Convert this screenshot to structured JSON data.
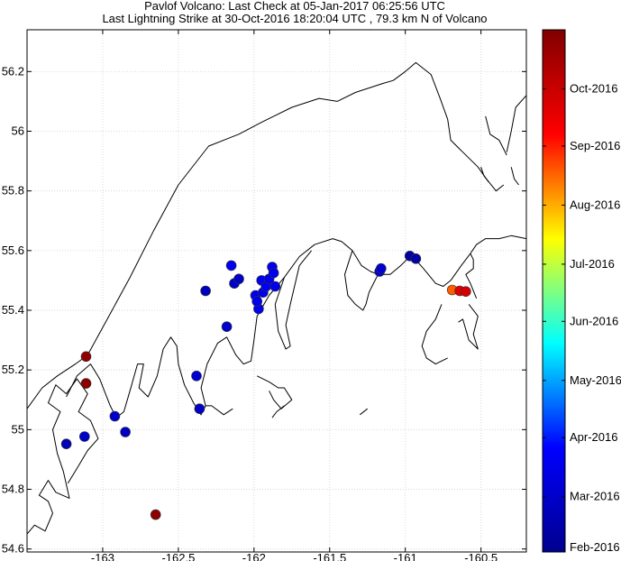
{
  "chart_data": {
    "type": "scatter",
    "title_lines": [
      "Pavlof Volcano: Last Check at 05-Jan-2017 06:25:56 UTC",
      "Last Lightning Strike at 30-Oct-2016 18:20:04 UTC , 79.3 km N of Volcano"
    ],
    "xlim": [
      -163.5,
      -160.2
    ],
    "ylim": [
      54.59,
      56.34
    ],
    "x_ticks": [
      -163,
      -162.5,
      -162,
      -161.5,
      -161,
      -160.5
    ],
    "x_tick_labels": [
      "-163",
      "-162.5",
      "-162",
      "-161.5",
      "-161",
      "-160.5"
    ],
    "y_ticks": [
      54.6,
      54.8,
      55,
      55.2,
      55.4,
      55.6,
      55.8,
      56,
      56.2
    ],
    "y_tick_labels": [
      "54.6",
      "54.8",
      "55",
      "55.2",
      "55.4",
      "55.6",
      "55.8",
      "56",
      "56.2"
    ],
    "grid": true,
    "colorbar": {
      "range": [
        "2016-02-01",
        "2016-11-01"
      ],
      "ticks": [
        "2016-02-01",
        "2016-03-01",
        "2016-04-01",
        "2016-05-01",
        "2016-06-01",
        "2016-07-01",
        "2016-08-01",
        "2016-09-01",
        "2016-10-01"
      ],
      "tick_labels": [
        "Feb-2016",
        "Mar-2016",
        "Apr-2016",
        "May-2016",
        "Jun-2016",
        "Jul-2016",
        "Aug-2016",
        "Sep-2016",
        "Oct-2016"
      ],
      "colormap": [
        "#00008f",
        "#0000ff",
        "#00ffff",
        "#ffff00",
        "#ff0000",
        "#800000"
      ]
    },
    "points": [
      {
        "lon": -163.11,
        "lat": 55.245,
        "date": "2016-10-25"
      },
      {
        "lon": -163.11,
        "lat": 55.155,
        "date": "2016-10-27"
      },
      {
        "lon": -162.65,
        "lat": 54.715,
        "date": "2016-10-26"
      },
      {
        "lon": -163.24,
        "lat": 54.952,
        "date": "2016-02-20"
      },
      {
        "lon": -163.12,
        "lat": 54.977,
        "date": "2016-03-01"
      },
      {
        "lon": -162.92,
        "lat": 55.045,
        "date": "2016-03-03"
      },
      {
        "lon": -162.85,
        "lat": 54.992,
        "date": "2016-02-25"
      },
      {
        "lon": -162.38,
        "lat": 55.18,
        "date": "2016-03-05"
      },
      {
        "lon": -162.36,
        "lat": 55.07,
        "date": "2016-02-28"
      },
      {
        "lon": -162.32,
        "lat": 55.465,
        "date": "2016-02-22"
      },
      {
        "lon": -162.18,
        "lat": 55.345,
        "date": "2016-03-02"
      },
      {
        "lon": -162.15,
        "lat": 55.55,
        "date": "2016-03-20"
      },
      {
        "lon": -162.13,
        "lat": 55.49,
        "date": "2016-03-01"
      },
      {
        "lon": -162.1,
        "lat": 55.505,
        "date": "2016-02-28"
      },
      {
        "lon": -161.99,
        "lat": 55.45,
        "date": "2016-03-16"
      },
      {
        "lon": -161.97,
        "lat": 55.405,
        "date": "2016-03-18"
      },
      {
        "lon": -161.98,
        "lat": 55.43,
        "date": "2016-03-17"
      },
      {
        "lon": -161.95,
        "lat": 55.5,
        "date": "2016-03-18"
      },
      {
        "lon": -161.94,
        "lat": 55.46,
        "date": "2016-03-19"
      },
      {
        "lon": -161.92,
        "lat": 55.48,
        "date": "2016-03-20"
      },
      {
        "lon": -161.9,
        "lat": 55.505,
        "date": "2016-03-19"
      },
      {
        "lon": -161.88,
        "lat": 55.545,
        "date": "2016-03-21"
      },
      {
        "lon": -161.87,
        "lat": 55.525,
        "date": "2016-03-19"
      },
      {
        "lon": -161.86,
        "lat": 55.48,
        "date": "2016-03-18"
      },
      {
        "lon": -161.17,
        "lat": 55.53,
        "date": "2016-03-03"
      },
      {
        "lon": -161.16,
        "lat": 55.54,
        "date": "2016-03-05"
      },
      {
        "lon": -160.97,
        "lat": 55.582,
        "date": "2016-02-10"
      },
      {
        "lon": -160.93,
        "lat": 55.573,
        "date": "2016-02-12"
      },
      {
        "lon": -160.69,
        "lat": 55.468,
        "date": "2016-08-18"
      },
      {
        "lon": -160.64,
        "lat": 55.465,
        "date": "2016-09-20"
      },
      {
        "lon": -160.6,
        "lat": 55.463,
        "date": "2016-09-25"
      }
    ],
    "coastlines": [
      [
        [
          -163.5,
          54.65
        ],
        [
          -163.45,
          54.68
        ],
        [
          -163.38,
          54.66
        ],
        [
          -163.33,
          54.72
        ],
        [
          -163.36,
          54.76
        ],
        [
          -163.42,
          54.78
        ],
        [
          -163.36,
          54.83
        ],
        [
          -163.31,
          54.79
        ],
        [
          -163.22,
          54.77
        ],
        [
          -163.26,
          54.86
        ],
        [
          -163.3,
          54.92
        ],
        [
          -163.33,
          55.0
        ],
        [
          -163.28,
          55.06
        ],
        [
          -163.36,
          55.09
        ],
        [
          -163.31,
          55.15
        ],
        [
          -163.24,
          55.12
        ],
        [
          -163.17,
          55.17
        ],
        [
          -163.1,
          55.12
        ],
        [
          -163.16,
          55.06
        ],
        [
          -163.08,
          55.03
        ],
        [
          -163.03,
          54.97
        ],
        [
          -163.1,
          54.93
        ],
        [
          -163.17,
          54.87
        ],
        [
          -163.23,
          54.82
        ]
      ],
      [
        [
          -163.5,
          55.07
        ],
        [
          -163.4,
          55.14
        ],
        [
          -163.3,
          55.18
        ],
        [
          -163.18,
          55.22
        ],
        [
          -163.1,
          55.25
        ],
        [
          -162.97,
          55.37
        ],
        [
          -162.82,
          55.51
        ],
        [
          -162.66,
          55.67
        ],
        [
          -162.5,
          55.82
        ],
        [
          -162.3,
          55.95
        ],
        [
          -162.1,
          55.99
        ],
        [
          -161.95,
          56.03
        ],
        [
          -161.75,
          56.08
        ],
        [
          -161.57,
          56.11
        ],
        [
          -161.45,
          56.1
        ],
        [
          -161.33,
          56.13
        ],
        [
          -161.15,
          56.16
        ],
        [
          -161.08,
          56.17
        ],
        [
          -161.0,
          56.2
        ],
        [
          -160.93,
          56.23
        ],
        [
          -160.83,
          56.19
        ],
        [
          -160.77,
          56.11
        ],
        [
          -160.72,
          56.04
        ],
        [
          -160.7,
          55.97
        ],
        [
          -160.62,
          55.93
        ],
        [
          -160.52,
          55.88
        ],
        [
          -160.45,
          55.83
        ]
      ],
      [
        [
          -163.24,
          55.11
        ],
        [
          -163.17,
          55.18
        ],
        [
          -163.08,
          55.22
        ],
        [
          -163.02,
          55.17
        ],
        [
          -162.95,
          55.08
        ],
        [
          -162.91,
          55.04
        ],
        [
          -162.86,
          55.06
        ],
        [
          -162.82,
          55.13
        ],
        [
          -162.77,
          55.22
        ],
        [
          -162.73,
          55.22
        ],
        [
          -162.76,
          55.14
        ],
        [
          -162.7,
          55.11
        ],
        [
          -162.64,
          55.18
        ],
        [
          -162.6,
          55.27
        ],
        [
          -162.55,
          55.31
        ],
        [
          -162.51,
          55.28
        ],
        [
          -162.5,
          55.22
        ],
        [
          -162.46,
          55.15
        ],
        [
          -162.4,
          55.09
        ],
        [
          -162.35,
          55.05
        ],
        [
          -162.32,
          55.08
        ],
        [
          -162.35,
          55.14
        ],
        [
          -162.31,
          55.22
        ],
        [
          -162.24,
          55.29
        ],
        [
          -162.18,
          55.31
        ],
        [
          -162.12,
          55.25
        ],
        [
          -162.07,
          55.22
        ],
        [
          -162.02,
          55.23
        ],
        [
          -162.0,
          55.3
        ],
        [
          -161.98,
          55.38
        ],
        [
          -161.9,
          55.45
        ],
        [
          -161.8,
          55.51
        ],
        [
          -161.7,
          55.58
        ],
        [
          -161.6,
          55.62
        ],
        [
          -161.48,
          55.64
        ],
        [
          -161.42,
          55.63
        ],
        [
          -161.35,
          55.6
        ],
        [
          -161.29,
          55.55
        ],
        [
          -161.23,
          55.53
        ],
        [
          -161.18,
          55.52
        ],
        [
          -161.1,
          55.52
        ],
        [
          -161.03,
          55.55
        ],
        [
          -160.99,
          55.57
        ],
        [
          -160.95,
          55.58
        ],
        [
          -160.88,
          55.54
        ],
        [
          -160.8,
          55.49
        ],
        [
          -160.75,
          55.48
        ],
        [
          -160.7,
          55.5
        ],
        [
          -160.63,
          55.55
        ],
        [
          -160.57,
          55.59
        ],
        [
          -160.53,
          55.62
        ],
        [
          -160.47,
          55.64
        ],
        [
          -160.38,
          55.64
        ],
        [
          -160.3,
          55.65
        ],
        [
          -160.2,
          55.64
        ]
      ],
      [
        [
          -161.8,
          55.51
        ],
        [
          -161.86,
          55.42
        ],
        [
          -161.84,
          55.33
        ],
        [
          -161.79,
          55.27
        ],
        [
          -161.76,
          55.28
        ],
        [
          -161.79,
          55.35
        ],
        [
          -161.76,
          55.42
        ],
        [
          -161.7,
          55.55
        ],
        [
          -161.62,
          55.6
        ]
      ],
      [
        [
          -161.35,
          55.6
        ],
        [
          -161.4,
          55.52
        ],
        [
          -161.38,
          55.45
        ],
        [
          -161.33,
          55.42
        ],
        [
          -161.28,
          55.4
        ],
        [
          -161.26,
          55.42
        ],
        [
          -161.24,
          55.46
        ],
        [
          -161.2,
          55.5
        ],
        [
          -161.18,
          55.52
        ]
      ],
      [
        [
          -160.57,
          55.59
        ],
        [
          -160.55,
          55.57
        ],
        [
          -160.55,
          55.54
        ],
        [
          -160.6,
          55.52
        ],
        [
          -160.57,
          55.49
        ],
        [
          -160.53,
          55.44
        ]
      ],
      [
        [
          -160.58,
          55.42
        ],
        [
          -160.52,
          55.38
        ],
        [
          -160.55,
          55.32
        ],
        [
          -160.52,
          55.27
        ],
        [
          -160.58,
          55.3
        ],
        [
          -160.62,
          55.37
        ],
        [
          -160.65,
          55.36
        ]
      ],
      [
        [
          -160.76,
          55.42
        ],
        [
          -160.8,
          55.37
        ],
        [
          -160.86,
          55.33
        ],
        [
          -160.89,
          55.28
        ],
        [
          -160.86,
          55.24
        ],
        [
          -160.8,
          55.22
        ],
        [
          -160.72,
          55.24
        ]
      ],
      [
        [
          -161.98,
          55.18
        ],
        [
          -161.9,
          55.16
        ],
        [
          -161.84,
          55.14
        ],
        [
          -161.8,
          55.14
        ],
        [
          -161.75,
          55.1
        ],
        [
          -161.82,
          55.07
        ],
        [
          -161.87,
          55.1
        ],
        [
          -161.9,
          55.13
        ]
      ],
      [
        [
          -162.32,
          55.08
        ],
        [
          -162.28,
          55.08
        ],
        [
          -162.2,
          55.05
        ],
        [
          -162.14,
          55.07
        ]
      ],
      [
        [
          -161.88,
          55.04
        ],
        [
          -161.85,
          55.06
        ],
        [
          -161.8,
          55.08
        ]
      ],
      [
        [
          -161.3,
          55.05
        ],
        [
          -161.25,
          55.07
        ]
      ],
      [
        [
          -160.47,
          56.05
        ],
        [
          -160.44,
          55.99
        ],
        [
          -160.38,
          55.97
        ],
        [
          -160.33,
          55.92
        ]
      ],
      [
        [
          -160.5,
          55.88
        ],
        [
          -160.48,
          55.85
        ],
        [
          -160.4,
          55.8
        ],
        [
          -160.35,
          55.82
        ]
      ],
      [
        [
          -160.33,
          55.93
        ],
        [
          -160.3,
          56.0
        ],
        [
          -160.27,
          56.08
        ],
        [
          -160.2,
          56.12
        ]
      ],
      [
        [
          -160.3,
          55.88
        ],
        [
          -160.28,
          55.84
        ],
        [
          -160.25,
          55.82
        ]
      ]
    ]
  }
}
